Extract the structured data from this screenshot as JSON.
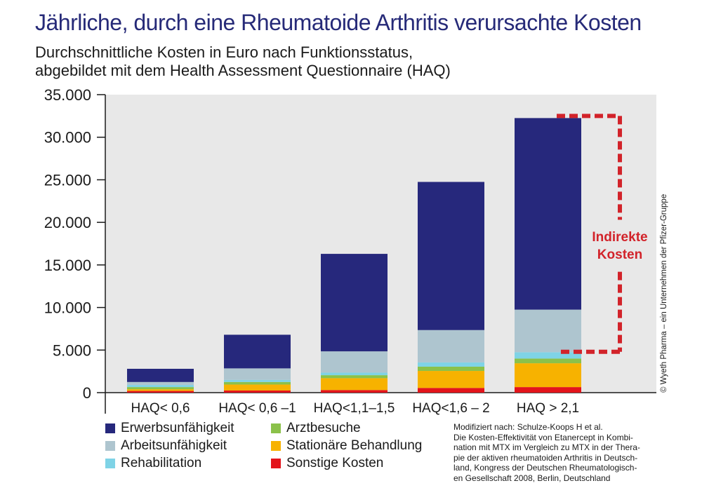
{
  "title": "Jährliche, durch eine Rheumatoide Arthritis verursachte Kosten",
  "subtitle": [
    "Durchschnittliche Kosten in Euro nach Funktionsstatus,",
    "abgebildet mit dem Health Assessment Questionnaire (HAQ)"
  ],
  "chart_data": {
    "type": "bar",
    "stacked": true,
    "categories": [
      "HAQ< 0,6",
      "HAQ< 0,6 –1",
      "HAQ<1,1–1,5",
      "HAQ<1,6 – 2",
      "HAQ > 2,1"
    ],
    "ylim": [
      0,
      35000
    ],
    "yticks": [
      0,
      5000,
      10000,
      15000,
      20000,
      25000,
      30000,
      35000
    ],
    "ytick_labels": [
      "0",
      "5.000",
      "10.000",
      "15.000",
      "20.000",
      "25.000",
      "30.000",
      "35.000"
    ],
    "grid": false,
    "plot_background": "#e8e8e8",
    "series": [
      {
        "name": "Sonstige Kosten",
        "color": "#e3141b",
        "values": [
          200,
          250,
          300,
          550,
          650
        ]
      },
      {
        "name": "Stationäre Behandlung",
        "color": "#f7b200",
        "values": [
          200,
          700,
          1400,
          2000,
          2800
        ]
      },
      {
        "name": "Arztbesuche",
        "color": "#8bc14a",
        "values": [
          250,
          300,
          350,
          500,
          550
        ]
      },
      {
        "name": "Rehabilitation",
        "color": "#7fd3e6",
        "values": [
          250,
          250,
          300,
          500,
          750
        ]
      },
      {
        "name": "Arbeitsunfähigkeit",
        "color": "#aec5cf",
        "values": [
          350,
          1350,
          2500,
          3800,
          5000
        ]
      },
      {
        "name": "Erwerbsunfähigkeit",
        "color": "#26287c",
        "values": [
          1550,
          3950,
          11450,
          17400,
          22500
        ]
      }
    ],
    "annotation": {
      "text": [
        "Indirekte",
        "Kosten"
      ],
      "color": "#d2232a",
      "bracket_from": 4800,
      "bracket_to": 32500
    }
  },
  "legend": [
    {
      "label": "Erwerbsunfähigkeit",
      "color": "#26287c"
    },
    {
      "label": "Arztbesuche",
      "color": "#8bc14a"
    },
    {
      "label": "Arbeitsunfähigkeit",
      "color": "#aec5cf"
    },
    {
      "label": "Stationäre Behandlung",
      "color": "#f7b200"
    },
    {
      "label": "Rehabilitation",
      "color": "#7fd3e6"
    },
    {
      "label": "Sonstige Kosten",
      "color": "#e3141b"
    }
  ],
  "source": [
    "Modifiziert nach: Schulze-Koops H et al.",
    "Die Kosten-Effektivität von Etanercept in Kombi-",
    "nation mit MTX im Vergleich zu MTX in der Thera-",
    "pie der aktiven rheumatoiden Arthritis in Deutsch-",
    "land, Kongress der Deutschen Rheumatologisch-",
    "en Gesellschaft 2008, Berlin, Deutschland"
  ],
  "copyright": "© Wyeth Pharma – ein Unternehmen der Pfizer-Gruppe"
}
